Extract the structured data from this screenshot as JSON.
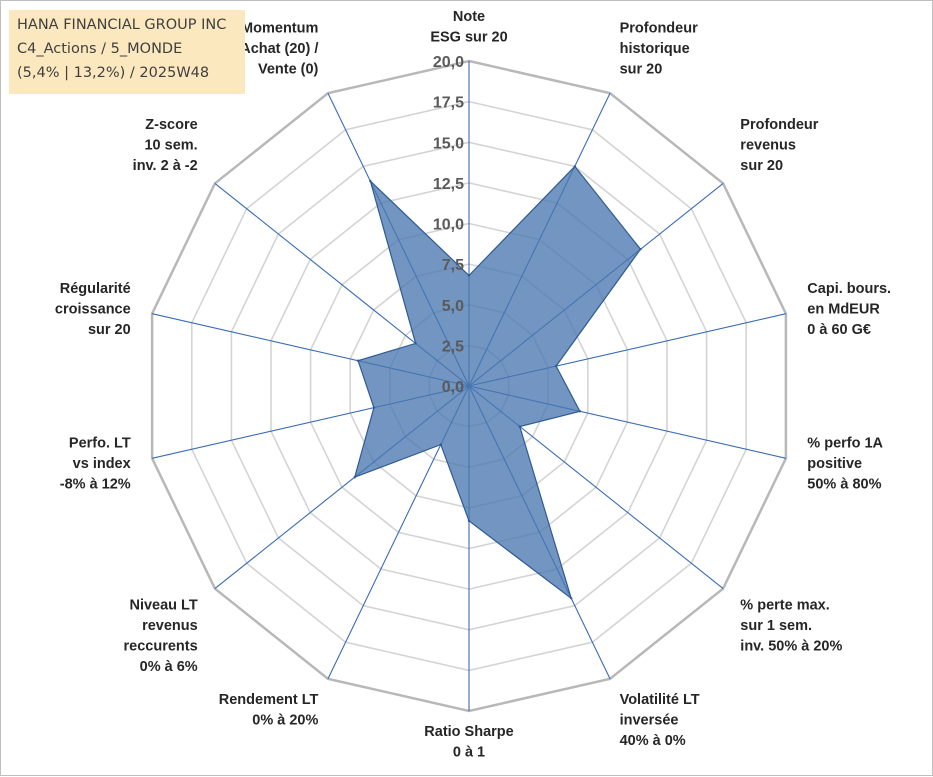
{
  "title_box": {
    "line1": "HANA FINANCIAL GROUP INC",
    "line2": "C4_Actions / 5_MONDE",
    "line3": "(5,4% | 13,2%) / 2025W48"
  },
  "colors": {
    "fill": "#4a77b0",
    "stroke": "#2f5b93",
    "grid_outer": "#b8b8b8",
    "grid_inner": "#d4d4d4",
    "spoke": "#3a6cb4",
    "title_bg": "#fbe8bf"
  },
  "chart_data": {
    "type": "radar",
    "title": "HANA FINANCIAL GROUP INC",
    "rmin": 0,
    "rmax": 20,
    "tick_step": 2.5,
    "tick_labels": [
      "0,0",
      "2,5",
      "5,0",
      "7,5",
      "10,0",
      "12,5",
      "15,0",
      "17,5",
      "20,0"
    ],
    "axes": [
      {
        "label": [
          "Note",
          "ESG sur 20"
        ],
        "value": 6.8
      },
      {
        "label": [
          "Profondeur",
          "historique",
          "sur 20"
        ],
        "value": 15.0
      },
      {
        "label": [
          "Profondeur",
          "revenus",
          "sur 20"
        ],
        "value": 13.5
      },
      {
        "label": [
          "Capi. bours.",
          "en MdEUR",
          "0 à 60 G€"
        ],
        "value": 5.5
      },
      {
        "label": [
          "% perfo 1A",
          "positive",
          "50% à 80%"
        ],
        "value": 7.0
      },
      {
        "label": [
          "% perte max.",
          "sur 1 sem.",
          "inv. 50% à 20%"
        ],
        "value": 4.0
      },
      {
        "label": [
          "Volatilité LT",
          "inversée",
          "40% à 0%"
        ],
        "value": 14.5
      },
      {
        "label": [
          "Ratio Sharpe",
          "0 à 1"
        ],
        "value": 8.3
      },
      {
        "label": [
          "Rendement LT",
          "0% à 20%"
        ],
        "value": 4.0
      },
      {
        "label": [
          "Niveau LT",
          "revenus",
          "reccurents",
          "0% à 6%"
        ],
        "value": 9.0
      },
      {
        "label": [
          "Perfo. LT",
          "vs index",
          "-8% à 12%"
        ],
        "value": 6.0
      },
      {
        "label": [
          "Régularité",
          "croissance",
          "sur 20"
        ],
        "value": 7.0
      },
      {
        "label": [
          "Z-score",
          "10 sem.",
          "inv. 2 à -2"
        ],
        "value": 4.2
      },
      {
        "label": [
          "Momentum",
          "Achat (20) /",
          "Vente (0)"
        ],
        "value": 14.0
      }
    ]
  }
}
